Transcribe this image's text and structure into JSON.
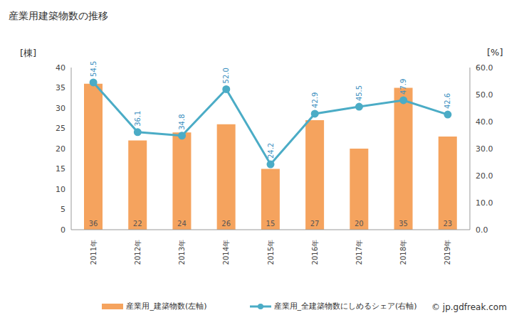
{
  "chart_data": {
    "type": "bar",
    "title": "産業用建築物数の推移",
    "y_label": "[棟]",
    "y2_label": "[%]",
    "annotations": [
      "© jp.gdfreak.com"
    ],
    "categories": [
      "2011年",
      "2012年",
      "2013年",
      "2014年",
      "2015年",
      "2016年",
      "2017年",
      "2018年",
      "2019年"
    ],
    "series": [
      {
        "name": "産業用_建築物数(左軸)",
        "type": "bar",
        "color": "#f5a35e",
        "values": [
          36,
          22,
          24,
          26,
          15,
          27,
          20,
          35,
          23
        ]
      },
      {
        "name": "産業用_全建築物数にしめるシェア(右軸)",
        "type": "line",
        "axis": "y2",
        "color": "#4bacc6",
        "marker": "circle",
        "values": [
          54.5,
          36.1,
          34.8,
          52.0,
          24.2,
          42.9,
          45.5,
          47.9,
          42.6
        ],
        "value_labels": [
          "54.5",
          "36.1",
          "34.8",
          "52.0",
          "24.2",
          "42.9",
          "45.5",
          "47.9",
          "42.6"
        ]
      }
    ],
    "ylim": [
      0,
      40
    ],
    "yticks": [
      0,
      5,
      10,
      15,
      20,
      25,
      30,
      35,
      40
    ],
    "y2lim": [
      0,
      60
    ],
    "y2ticks": [
      {
        "value": 0,
        "label": "0.0"
      },
      {
        "value": 10,
        "label": "10.0"
      },
      {
        "value": 20,
        "label": "20.0"
      },
      {
        "value": 30,
        "label": "30.0"
      },
      {
        "value": 40,
        "label": "40.0"
      },
      {
        "value": 50,
        "label": "50.0"
      },
      {
        "value": 60,
        "label": "60.0"
      }
    ],
    "grid": false,
    "data_labels": true,
    "legend": "bottom"
  }
}
